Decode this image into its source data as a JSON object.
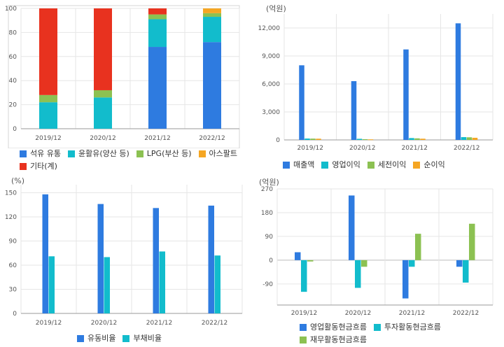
{
  "colors": {
    "blue": "#2e7be0",
    "cyan": "#12bccc",
    "green": "#8cc152",
    "orange": "#f5a623",
    "red": "#e8321f",
    "grid": "#e6e6e6",
    "axis": "#999999"
  },
  "chart_data": [
    {
      "id": "revenue-mix",
      "type": "bar",
      "stacked": true,
      "unit": "",
      "categories": [
        "2019/12",
        "2020/12",
        "2021/12",
        "2022/12"
      ],
      "ylim": [
        0,
        100
      ],
      "yticks": [
        0,
        20,
        40,
        60,
        80,
        100
      ],
      "grid": true,
      "legend": "bottom",
      "series": [
        {
          "name": "석유 유통",
          "color": "blue",
          "values": [
            0,
            0,
            68,
            72
          ]
        },
        {
          "name": "윤활유(양산 등)",
          "color": "cyan",
          "values": [
            22,
            26,
            23,
            21
          ]
        },
        {
          "name": "LPG(부산 등)",
          "color": "green",
          "values": [
            6,
            6,
            4,
            3
          ]
        },
        {
          "name": "아스팔트",
          "color": "orange",
          "values": [
            0,
            0,
            0,
            4
          ]
        },
        {
          "name": "기타(계)",
          "color": "red",
          "values": [
            72,
            68,
            5,
            0
          ]
        }
      ]
    },
    {
      "id": "earnings",
      "type": "bar",
      "unit": "(억원)",
      "categories": [
        "2019/12",
        "2020/12",
        "2021/12",
        "2022/12"
      ],
      "ylim": [
        0,
        13500
      ],
      "yticks": [
        0,
        3000,
        6000,
        9000,
        12000
      ],
      "ytick_labels": [
        "0",
        "3,000",
        "6,000",
        "9,000",
        "12,000"
      ],
      "grid": true,
      "legend": "bottom",
      "series": [
        {
          "name": "매출액",
          "color": "blue",
          "values": [
            8000,
            6300,
            9700,
            12500
          ]
        },
        {
          "name": "영업이익",
          "color": "cyan",
          "values": [
            150,
            120,
            200,
            300
          ]
        },
        {
          "name": "세전이익",
          "color": "green",
          "values": [
            140,
            80,
            170,
            280
          ]
        },
        {
          "name": "순이익",
          "color": "orange",
          "values": [
            130,
            60,
            130,
            230
          ]
        }
      ]
    },
    {
      "id": "ratios",
      "type": "bar",
      "unit": "(%)",
      "categories": [
        "2019/12",
        "2020/12",
        "2021/12",
        "2022/12"
      ],
      "ylim": [
        0,
        160
      ],
      "yticks": [
        0,
        30,
        60,
        90,
        120,
        150
      ],
      "grid": true,
      "legend": "bottom",
      "series": [
        {
          "name": "유동비율",
          "color": "blue",
          "values": [
            148,
            136,
            131,
            134
          ]
        },
        {
          "name": "부채비율",
          "color": "cyan",
          "values": [
            71,
            70,
            77,
            72
          ]
        }
      ]
    },
    {
      "id": "cashflow",
      "type": "bar",
      "unit": "(억원)",
      "categories": [
        "2019/12",
        "2020/12",
        "2021/12",
        "2022/12"
      ],
      "ylim": [
        -170,
        270
      ],
      "yticks": [
        -90,
        0,
        90,
        180,
        270
      ],
      "grid": true,
      "legend": "bottom",
      "series": [
        {
          "name": "영업활동현금흐름",
          "color": "blue",
          "values": [
            30,
            245,
            -145,
            -25
          ]
        },
        {
          "name": "투자활동현금흐름",
          "color": "cyan",
          "values": [
            -120,
            -105,
            -25,
            -85
          ]
        },
        {
          "name": "재무활동현금흐름",
          "color": "green",
          "values": [
            -5,
            -25,
            100,
            138
          ]
        }
      ]
    }
  ]
}
